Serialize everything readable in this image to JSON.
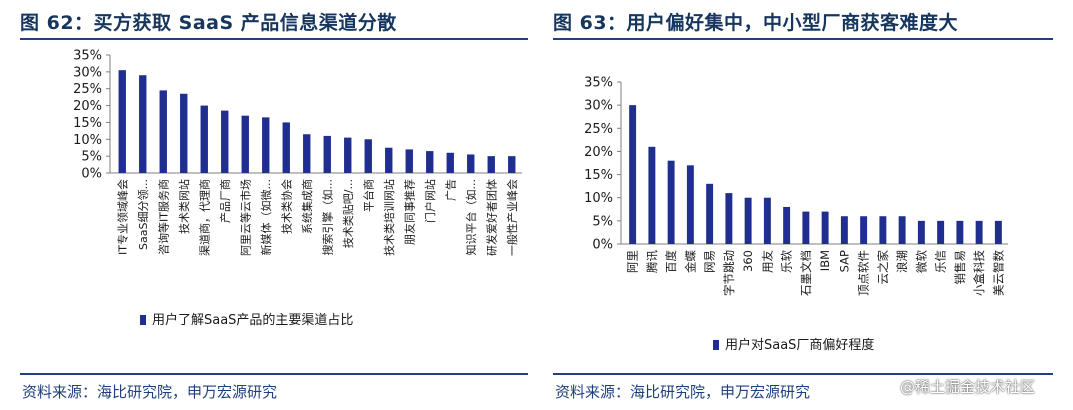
{
  "figures": [
    {
      "title": "图 62：买方获取 SaaS 产品信息渠道分散",
      "source": "资料来源：海比研究院，申万宏源研究"
    },
    {
      "title": "图 63：用户偏好集中，中小型厂商获客难度大",
      "source": "资料来源：海比研究院，申万宏源研究"
    }
  ],
  "watermark": "@稀土掘金技术社区",
  "chart_data": [
    {
      "type": "bar",
      "color": "#1f2e8f",
      "categories": [
        "IT专业领域峰会",
        "SaaS细分领...",
        "咨询等IT服务商",
        "技术类网站",
        "渠道商，代理商",
        "产品厂商",
        "阿里云等云市场",
        "新媒体（如微...",
        "技术类协会",
        "系统集成商",
        "搜索引擎（如...",
        "技术类贴吧/...",
        "平台商",
        "技术类培训网站",
        "朋友同事推荐",
        "门户网站",
        "广告",
        "知识平台（如...",
        "研发爱好者团体",
        "一般性产业峰会"
      ],
      "series": [
        {
          "name": "用户了解SaaS产品的主要渠道占比",
          "values": [
            30.5,
            29,
            24.5,
            23.5,
            20,
            18.5,
            17,
            16.5,
            15,
            11.5,
            11,
            10.5,
            10,
            7.5,
            7,
            6.5,
            6,
            5.5,
            5,
            5
          ]
        }
      ],
      "ylim": [
        0,
        35
      ],
      "yticks": [
        "0%",
        "5%",
        "10%",
        "15%",
        "20%",
        "25%",
        "30%",
        "35%"
      ],
      "legend_position": "bottom",
      "grid": false
    },
    {
      "type": "bar",
      "color": "#1f2e8f",
      "categories": [
        "阿里",
        "腾讯",
        "百度",
        "金蝶",
        "网易",
        "字节跳动",
        "360",
        "用友",
        "乐软",
        "石墨文档",
        "IBM",
        "SAP",
        "顶点软件",
        "云之家",
        "浪潮",
        "微软",
        "乐信",
        "销售易",
        "小盒科技",
        "美云智数"
      ],
      "series": [
        {
          "name": "用户对SaaS厂商偏好程度",
          "values": [
            30,
            21,
            18,
            17,
            13,
            11,
            10,
            10,
            8,
            7,
            7,
            6,
            6,
            6,
            6,
            5,
            5,
            5,
            5,
            5
          ]
        }
      ],
      "ylim": [
        0,
        35
      ],
      "yticks": [
        "0%",
        "5%",
        "10%",
        "15%",
        "20%",
        "25%",
        "30%",
        "35%"
      ],
      "legend_position": "bottom",
      "grid": false
    }
  ]
}
